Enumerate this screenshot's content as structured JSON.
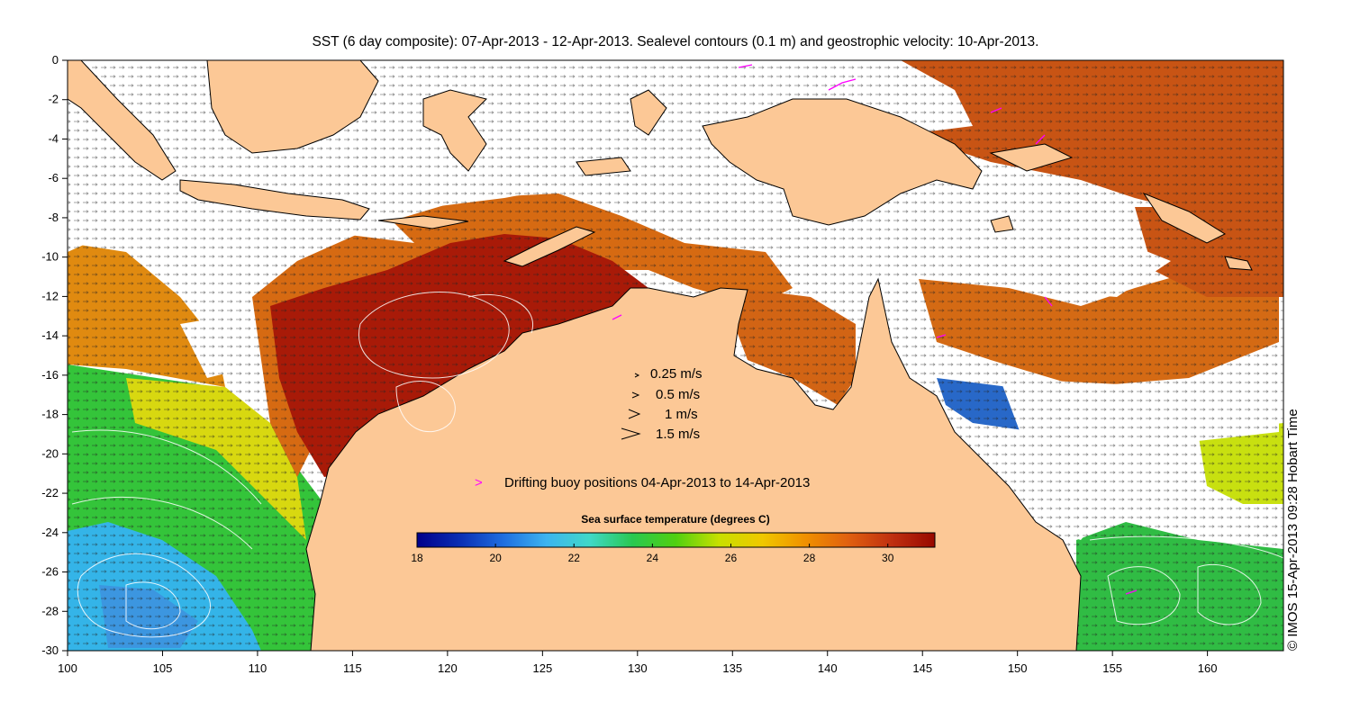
{
  "title": "SST (6 day composite): 07-Apr-2013 - 12-Apr-2013. Sealevel contours (0.1 m) and geostrophic velocity: 10-Apr-2013.",
  "credit": "© IMOS 15-Apr-2013 09:28 Hobart Time",
  "map": {
    "lon_range": [
      100,
      164
    ],
    "lat_range": [
      -30,
      0
    ],
    "x_ticks": [
      "100",
      "105",
      "110",
      "115",
      "120",
      "125",
      "130",
      "135",
      "140",
      "145",
      "150",
      "155",
      "160"
    ],
    "y_ticks": [
      "0",
      "-2",
      "-4",
      "-6",
      "-8",
      "-10",
      "-12",
      "-14",
      "-16",
      "-18",
      "-20",
      "-22",
      "-24",
      "-26",
      "-28",
      "-30"
    ],
    "land_color": "#fcc896",
    "ocean_no_data_color": "#ffffff"
  },
  "velocity_legend": {
    "entries": [
      "0.25 m/s",
      "0.5 m/s",
      "1 m/s",
      "1.5 m/s"
    ]
  },
  "buoy_legend": {
    "symbol": ">",
    "label": "Drifting buoy positions 04-Apr-2013 to 14-Apr-2013",
    "color": "#ff00ff"
  },
  "colorbar": {
    "title": "Sea surface temperature (degrees C)",
    "range": [
      18,
      31.2
    ],
    "ticks": [
      "18",
      "20",
      "22",
      "24",
      "26",
      "28",
      "30"
    ],
    "colors": [
      "#00008b",
      "#0a2fb4",
      "#1e6ee0",
      "#3cb4f0",
      "#40d8c8",
      "#28c850",
      "#50d010",
      "#c8e000",
      "#f0c800",
      "#f09000",
      "#e06010",
      "#c03010",
      "#980800"
    ]
  }
}
